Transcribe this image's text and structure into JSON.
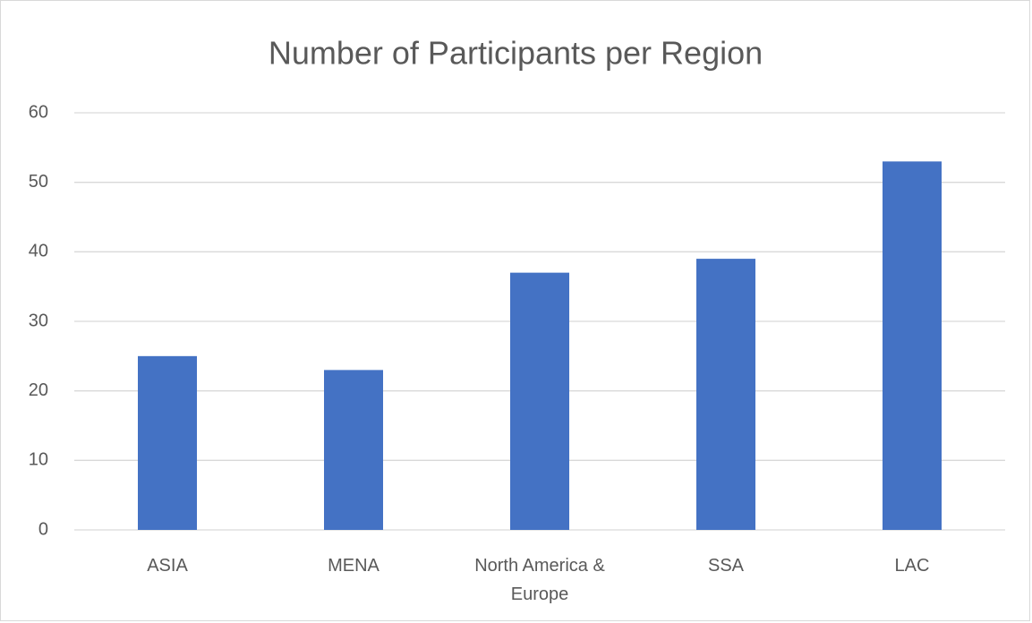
{
  "chart_data": {
    "type": "bar",
    "title": "Number of Participants per Region",
    "categories": [
      "ASIA",
      "MENA",
      "North America & Europe",
      "SSA",
      "LAC"
    ],
    "values": [
      25,
      23,
      37,
      39,
      53
    ],
    "color": "#4472c4",
    "ylim": [
      0,
      60
    ],
    "yticks": [
      0,
      10,
      20,
      30,
      40,
      50,
      60
    ],
    "grid": true
  }
}
